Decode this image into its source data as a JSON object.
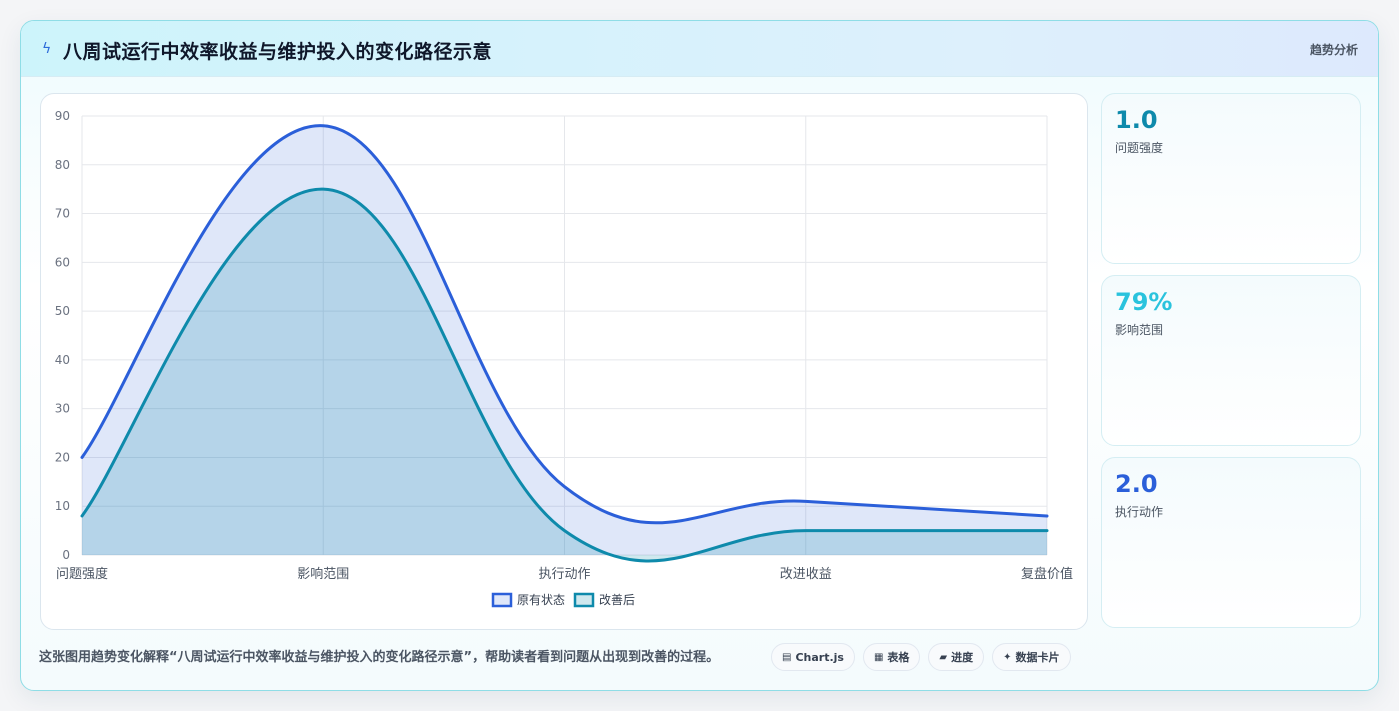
{
  "header": {
    "title": "八周试运行中效率收益与维护投入的变化路径示意",
    "tag": "趋势分析"
  },
  "chart_data": {
    "type": "area",
    "categories": [
      "问题强度",
      "影响范围",
      "执行动作",
      "改进收益",
      "复盘价值"
    ],
    "ylim": [
      0,
      90
    ],
    "yticks": [
      0,
      10,
      20,
      30,
      40,
      50,
      60,
      70,
      80,
      90
    ],
    "grid": true,
    "legend_position": "bottom",
    "series": [
      {
        "name": "原有状态",
        "values": [
          20,
          88,
          14,
          11,
          8
        ],
        "color": "#2b5fd9",
        "fill": "rgba(43,95,217,0.15)"
      },
      {
        "name": "改善后",
        "values": [
          8,
          75,
          5,
          5,
          5
        ],
        "color": "#0e8aab",
        "fill": "rgba(14,138,171,0.20)"
      }
    ]
  },
  "stats": [
    {
      "value": "1.0",
      "label": "问题强度",
      "color": "#0e8aab"
    },
    {
      "value": "79%",
      "label": "影响范围",
      "color": "#2ac3dd"
    },
    {
      "value": "2.0",
      "label": "执行动作",
      "color": "#2b5fd9"
    }
  ],
  "caption": "这张图用趋势变化解释“八周试运行中效率收益与维护投入的变化路径示意”，帮助读者看到问题从出现到改善的过程。",
  "chips": [
    {
      "icon": "chart-icon",
      "glyph": "▤",
      "label": "Chart.js"
    },
    {
      "icon": "table-icon",
      "glyph": "▦",
      "label": "表格"
    },
    {
      "icon": "progress-icon",
      "glyph": "▰",
      "label": "进度"
    },
    {
      "icon": "card-icon",
      "glyph": "✦",
      "label": "数据卡片"
    }
  ]
}
